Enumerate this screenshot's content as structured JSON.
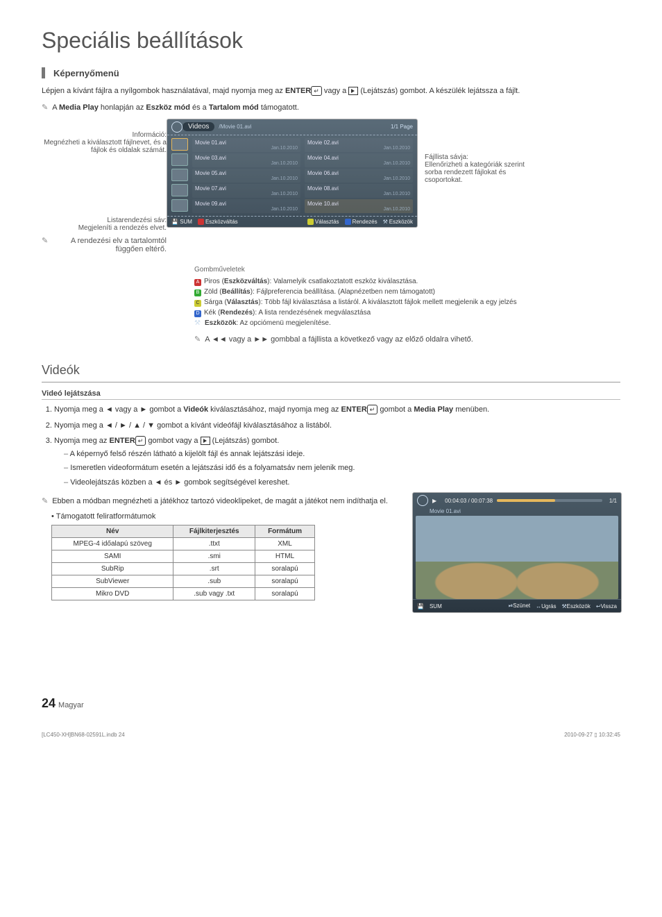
{
  "page": {
    "title": "Speciális beállítások",
    "section": "Képernyőmenü",
    "intro_prefix": "Lépjen a kívánt fájlra a nyílgombok használatával, majd nyomja meg az ",
    "intro_enter": "ENTER",
    "intro_mid": " vagy a ",
    "intro_play": "(Lejátszás)",
    "intro_suffix": " gombot. A készülék lejátssza a fájlt.",
    "note1_a": "A ",
    "note1_mediaplay": "Media Play",
    "note1_b": " honlapján az ",
    "note1_eszkoz": "Eszköz mód",
    "note1_c": " és a ",
    "note1_tartalom": "Tartalom mód",
    "note1_d": " támogatott."
  },
  "anno": {
    "info_title": "Információ:",
    "info_body": "Megnézheti a kiválasztott fájlnevet, és a fájlok és oldalak számát.",
    "sort_title": "Listarendezési sáv:",
    "sort_body": "Megjeleníti a rendezés elvet.",
    "sort_note": "A rendezési elv a tartalomtól függően eltérő.",
    "right_title": "Fájllista sávja:",
    "right_body": "Ellenőrizheti a kategóriák szerint sorba rendezett fájlokat és csoportokat."
  },
  "screen": {
    "videos_label": "Videos",
    "breadcrumb": "/Movie 01.avi",
    "page_indicator": "1/1 Page",
    "files": [
      {
        "name": "Movie 01.avi",
        "date": "Jan.10.2010"
      },
      {
        "name": "Movie 02.avi",
        "date": "Jan.10.2010"
      },
      {
        "name": "Movie 03.avi",
        "date": "Jan.10.2010"
      },
      {
        "name": "Movie 04.avi",
        "date": "Jan.10.2010"
      },
      {
        "name": "Movie 05.avi",
        "date": "Jan.10.2010"
      },
      {
        "name": "Movie 06.avi",
        "date": "Jan.10.2010"
      },
      {
        "name": "Movie 07.avi",
        "date": "Jan.10.2010"
      },
      {
        "name": "Movie 08.avi",
        "date": "Jan.10.2010"
      },
      {
        "name": "Movie 09.avi",
        "date": "Jan.10.2010"
      },
      {
        "name": "Movie 10.avi",
        "date": "Jan.10.2010"
      }
    ],
    "bottom": {
      "sum": "SUM",
      "a": "Eszközváltás",
      "c": "Választás",
      "d": "Rendezés",
      "tools": "Eszközök"
    }
  },
  "legend": {
    "header": "Gombműveletek",
    "a_label": "Piros",
    "a_name": "Eszközváltás",
    "a_text": ": Valamelyik csatlakoztatott eszköz kiválasztása.",
    "b_label": "Zöld",
    "b_name": "Beállítás",
    "b_text": ": Fájlpreferencia beállítása. (Alapnézetben nem támogatott)",
    "c_label": "Sárga",
    "c_name": "Választás",
    "c_text": ": Több fájl kiválasztása a listáról. A kiválasztott fájlok mellett megjelenik a egy jelzés",
    "d_label": "Kék",
    "d_name": "Rendezés",
    "d_text": ": A lista rendezésének megválasztása",
    "tools_name": "Eszközök",
    "tools_text": ": Az opciómenü megjelenítése.",
    "nav_note": "A ◄◄ vagy a ►► gombbal a fájllista a következő vagy az előző oldalra vihető."
  },
  "videos": {
    "heading": "Videók",
    "subheading": "Videó lejátszása",
    "step1_a": "Nyomja meg a ◄ vagy a ► gombot a ",
    "step1_videok": "Videók",
    "step1_b": " kiválasztásához, majd nyomja meg az ",
    "step1_enter": "ENTER",
    "step1_c": " gombot a ",
    "step1_mp": "Media Play",
    "step1_d": " menüben.",
    "step2": "Nyomja meg a ◄ / ► / ▲ / ▼ gombot a kívánt videófájl kiválasztásához a listából.",
    "step3_a": "Nyomja meg az ",
    "step3_enter": "ENTER",
    "step3_b": " gombot vagy a ",
    "step3_play": "(Lejátszás)",
    "step3_c": " gombot.",
    "bullet1": "A képernyő felső részén látható a kijelölt fájl és annak lejátszási ideje.",
    "bullet2": "Ismeretlen videoformátum esetén a lejátszási idő és a folyamatsáv nem jelenik meg.",
    "bullet3": "Videolejátszás közben a ◄ és ► gombok segítségével kereshet.",
    "note2": "Ebben a módban megnézheti a játékhoz tartozó videoklipeket, de magát a játékot nem indíthatja el.",
    "supported": "Támogatott feliratformátumok"
  },
  "table": {
    "headers": [
      "Név",
      "Fájlkiterjesztés",
      "Formátum"
    ],
    "rows": [
      [
        "MPEG-4 időalapú szöveg",
        ".ttxt",
        "XML"
      ],
      [
        "SAMI",
        ".smi",
        "HTML"
      ],
      [
        "SubRip",
        ".srt",
        "soralapú"
      ],
      [
        "SubViewer",
        ".sub",
        "soralapú"
      ],
      [
        "Mikro DVD",
        ".sub vagy .txt",
        "soralapú"
      ]
    ]
  },
  "player": {
    "time": "00:04:03 / 00:07:38",
    "page": "1/1",
    "filename": "Movie 01.avi",
    "sum": "SUM",
    "pause": "Szünet",
    "jump": "Ugrás",
    "tools": "Eszközök",
    "back": "Vissza"
  },
  "footer": {
    "pagenum": "24",
    "lang": "Magyar",
    "meta_left": "[LC450-XH]BN68-02591L.indb   24",
    "meta_right": "2010-09-27   ▯ 10:32:45"
  }
}
